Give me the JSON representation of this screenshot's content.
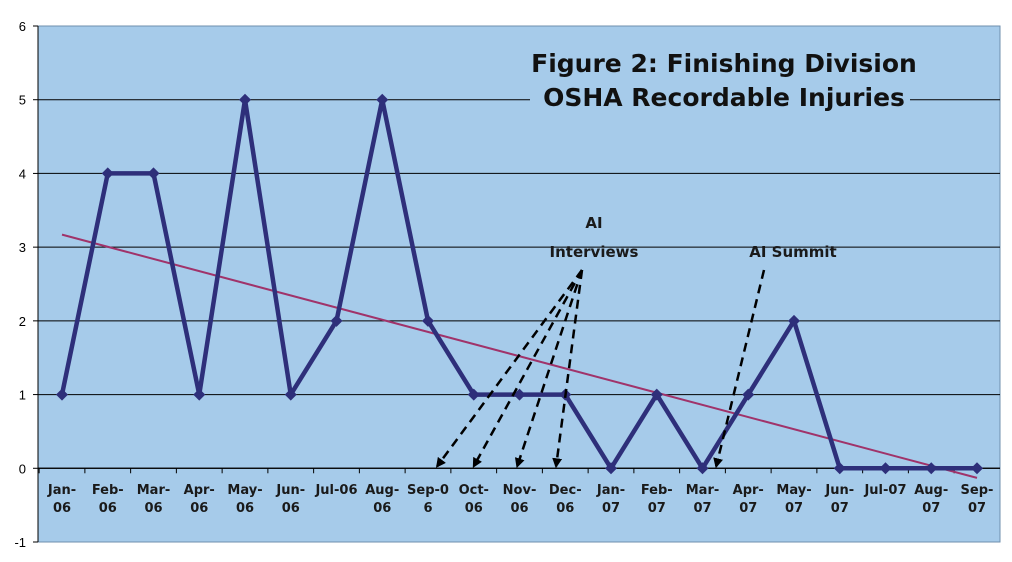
{
  "chart_data": {
    "type": "line",
    "title_lines": [
      "Figure 2: Finishing Division",
      "OSHA Recordable Injuries"
    ],
    "categories": [
      [
        "Jan-",
        "06"
      ],
      [
        "Feb-",
        "06"
      ],
      [
        "Mar-",
        "06"
      ],
      [
        "Apr-",
        "06"
      ],
      [
        "May-",
        "06"
      ],
      [
        "Jun-",
        "06"
      ],
      [
        "Jul-06",
        ""
      ],
      [
        "Aug-",
        "06"
      ],
      [
        "Sep-0",
        "6"
      ],
      [
        "Oct-",
        "06"
      ],
      [
        "Nov-",
        "06"
      ],
      [
        "Dec-",
        "06"
      ],
      [
        "Jan-",
        "07"
      ],
      [
        "Feb-",
        "07"
      ],
      [
        "Mar-",
        "07"
      ],
      [
        "Apr-",
        "07"
      ],
      [
        "May-",
        "07"
      ],
      [
        "Jun-",
        "07"
      ],
      [
        "Jul-07",
        ""
      ],
      [
        "Aug-",
        "07"
      ],
      [
        "Sep-",
        "07"
      ]
    ],
    "series": [
      {
        "name": "OSHA Recordable Injuries",
        "values": [
          1,
          4,
          4,
          1,
          5,
          1,
          2,
          5,
          2,
          1,
          1,
          1,
          0,
          1,
          0,
          1,
          2,
          0,
          0,
          0,
          0
        ],
        "color": "#2e2f7a"
      }
    ],
    "trendline": {
      "start": 3.17,
      "end": -0.13,
      "color": "#a0336a"
    },
    "ylim": [
      -1,
      6
    ],
    "yticks": [
      -1,
      0,
      1,
      2,
      3,
      4,
      5,
      6
    ],
    "grid": true,
    "annotations": [
      {
        "lines": [
          "AI",
          "Interviews"
        ],
        "arrow_targets": [
          8.2,
          9.0,
          9.95,
          10.8
        ]
      },
      {
        "lines": [
          "AI Summit"
        ],
        "arrow_targets": [
          14.3
        ]
      }
    ]
  },
  "colors": {
    "plot_background": "#a6cbea",
    "grid": "#000000",
    "axis": "#000000"
  }
}
